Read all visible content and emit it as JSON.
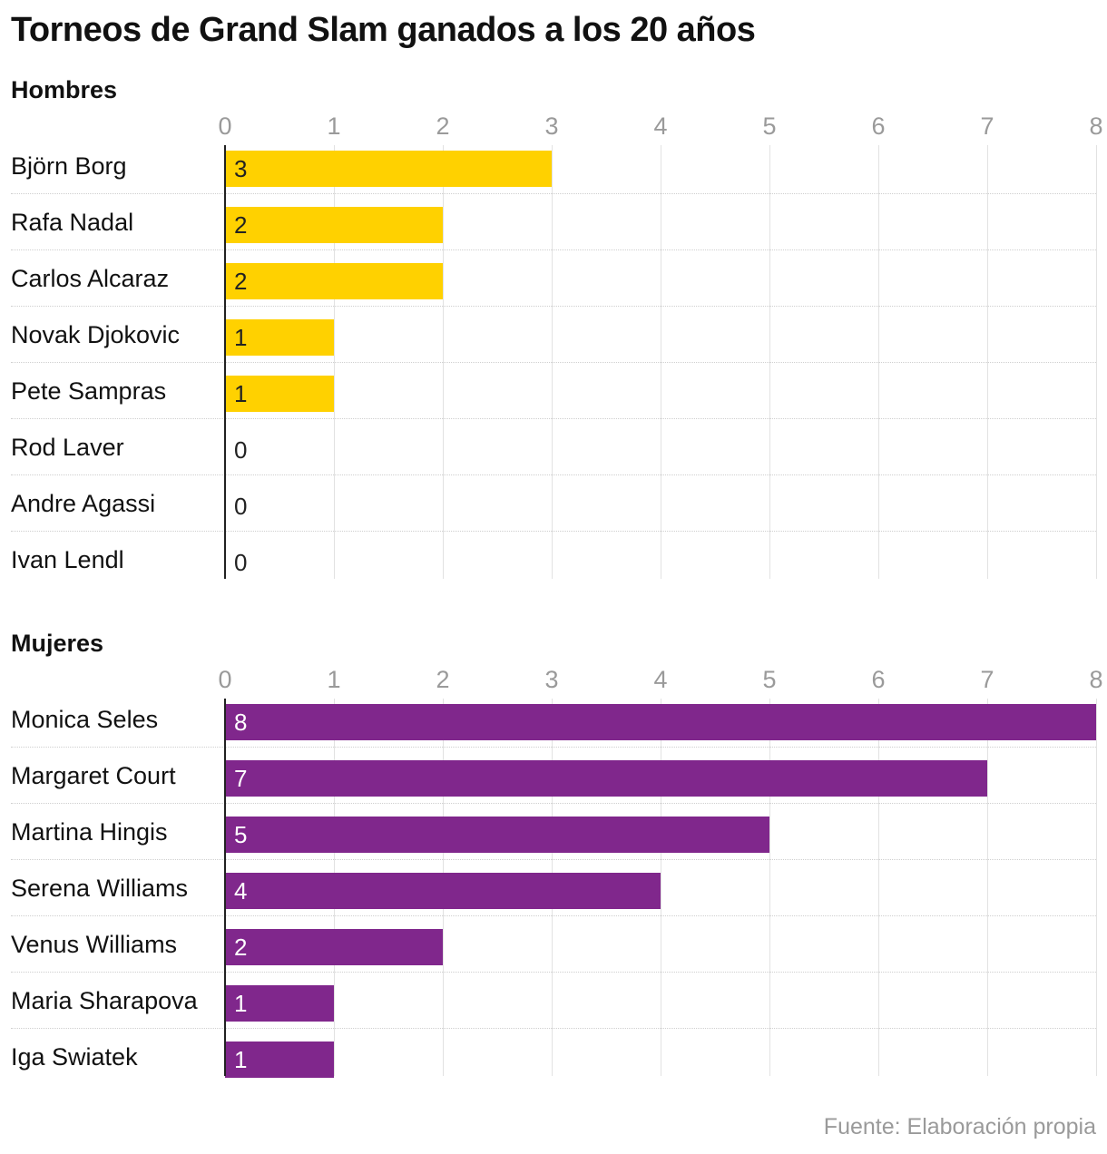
{
  "title": "Torneos de Grand Slam ganados a los 20 años",
  "source": "Fuente: Elaboración propia",
  "colors": {
    "men": "#ffd100",
    "women": "#80278c",
    "men_value_text": "#222222",
    "women_value_text": "#ffffff"
  },
  "chart_data": [
    {
      "type": "bar",
      "orientation": "horizontal",
      "title": "Hombres",
      "xlim": [
        0,
        8
      ],
      "ticks": [
        "0",
        "1",
        "2",
        "3",
        "4",
        "5",
        "6",
        "7",
        "8"
      ],
      "grid": true,
      "categories": [
        "Björn Borg",
        "Rafa Nadal",
        "Carlos Alcaraz",
        "Novak Djokovic",
        "Pete Sampras",
        "Rod Laver",
        "Andre Agassi",
        "Ivan Lendl"
      ],
      "values": [
        3,
        2,
        2,
        1,
        1,
        0,
        0,
        0
      ]
    },
    {
      "type": "bar",
      "orientation": "horizontal",
      "title": "Mujeres",
      "xlim": [
        0,
        8
      ],
      "ticks": [
        "0",
        "1",
        "2",
        "3",
        "4",
        "5",
        "6",
        "7",
        "8"
      ],
      "grid": true,
      "categories": [
        "Monica Seles",
        "Margaret Court",
        "Martina Hingis",
        "Serena Williams",
        "Venus Williams",
        "Maria Sharapova",
        "Iga Swiatek"
      ],
      "values": [
        8,
        7,
        5,
        4,
        2,
        1,
        1
      ]
    }
  ]
}
